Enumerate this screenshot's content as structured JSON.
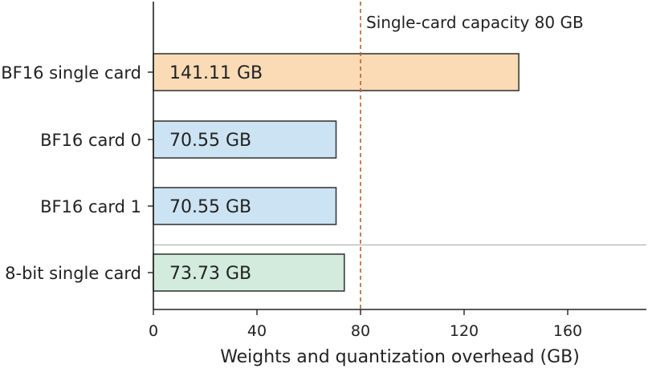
{
  "chart_data": {
    "type": "bar",
    "orientation": "horizontal",
    "categories": [
      "BF16 single card",
      "BF16 card 0",
      "BF16 card 1",
      "8-bit single card"
    ],
    "values": [
      141.11,
      70.55,
      70.55,
      73.73
    ],
    "value_labels": [
      "141.11 GB",
      "70.55 GB",
      "70.55 GB",
      "73.73 GB"
    ],
    "bar_colors": [
      "#fadbb6",
      "#cce3f3",
      "#cce3f3",
      "#d2ebdc"
    ],
    "xlabel": "Weights and quantization overhead (GB)",
    "ylabel": "",
    "xlim": [
      0,
      190
    ],
    "xticks": [
      0,
      40,
      80,
      120,
      160
    ],
    "reference_line": {
      "value": 80,
      "label": "Single-card capacity 80 GB",
      "color": "#b5632b",
      "style": "dashed"
    },
    "separator_after_category": 2,
    "grid": false
  }
}
